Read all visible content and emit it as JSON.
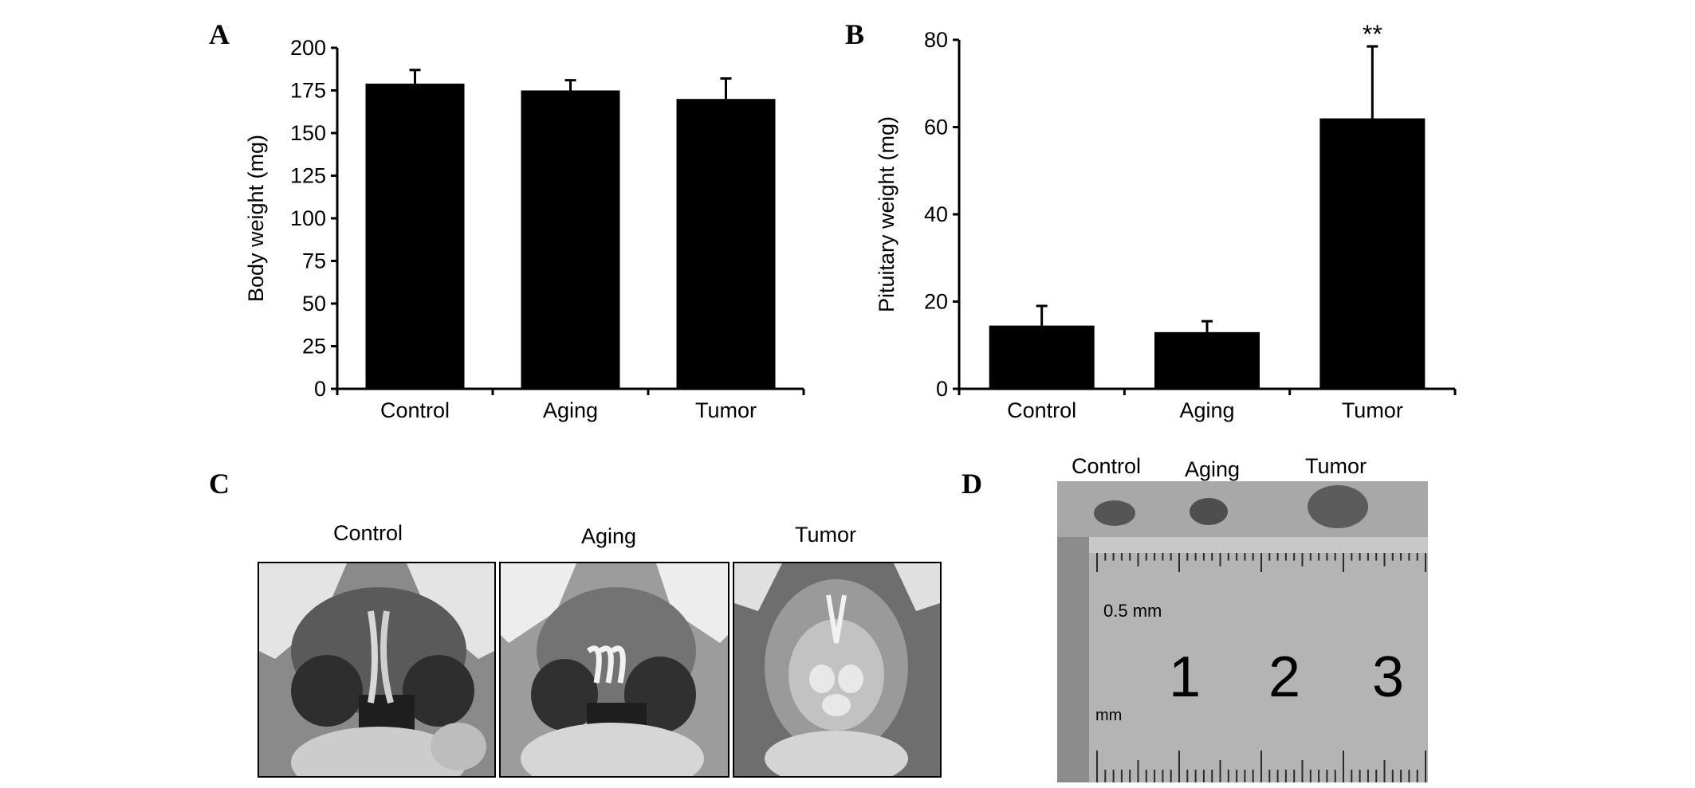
{
  "panels": {
    "a": "A",
    "b": "B",
    "c": "C",
    "d": "D"
  },
  "chart_data": [
    {
      "type": "bar",
      "panel": "A",
      "categories": [
        "Control",
        "Aging",
        "Tumor"
      ],
      "values": [
        179,
        175,
        170
      ],
      "errors": [
        8,
        6,
        12
      ],
      "ylabel": "Body weight (mg)",
      "ylim": [
        0,
        200
      ],
      "yticks": [
        "0",
        "25",
        "50",
        "75",
        "100",
        "125",
        "150",
        "175",
        "200"
      ],
      "bar_color": "#000000",
      "grid": false
    },
    {
      "type": "bar",
      "panel": "B",
      "categories": [
        "Control",
        "Aging",
        "Tumor"
      ],
      "values": [
        14.5,
        13,
        62
      ],
      "errors": [
        4.5,
        2.5,
        16.5
      ],
      "ylabel": "Pituitary weight (mg)",
      "ylim": [
        0,
        80
      ],
      "yticks": [
        "0",
        "20",
        "40",
        "60",
        "80"
      ],
      "significance": [
        "",
        "",
        "**"
      ],
      "bar_color": "#000000",
      "grid": false
    }
  ],
  "panel_c": {
    "labels": [
      "Control",
      "Aging",
      "Tumor"
    ]
  },
  "panel_d": {
    "sample_labels": [
      "Control",
      "Aging",
      "Tumor"
    ],
    "ruler_text": [
      "0.5 mm",
      "mm",
      "1",
      "2",
      "3"
    ]
  }
}
